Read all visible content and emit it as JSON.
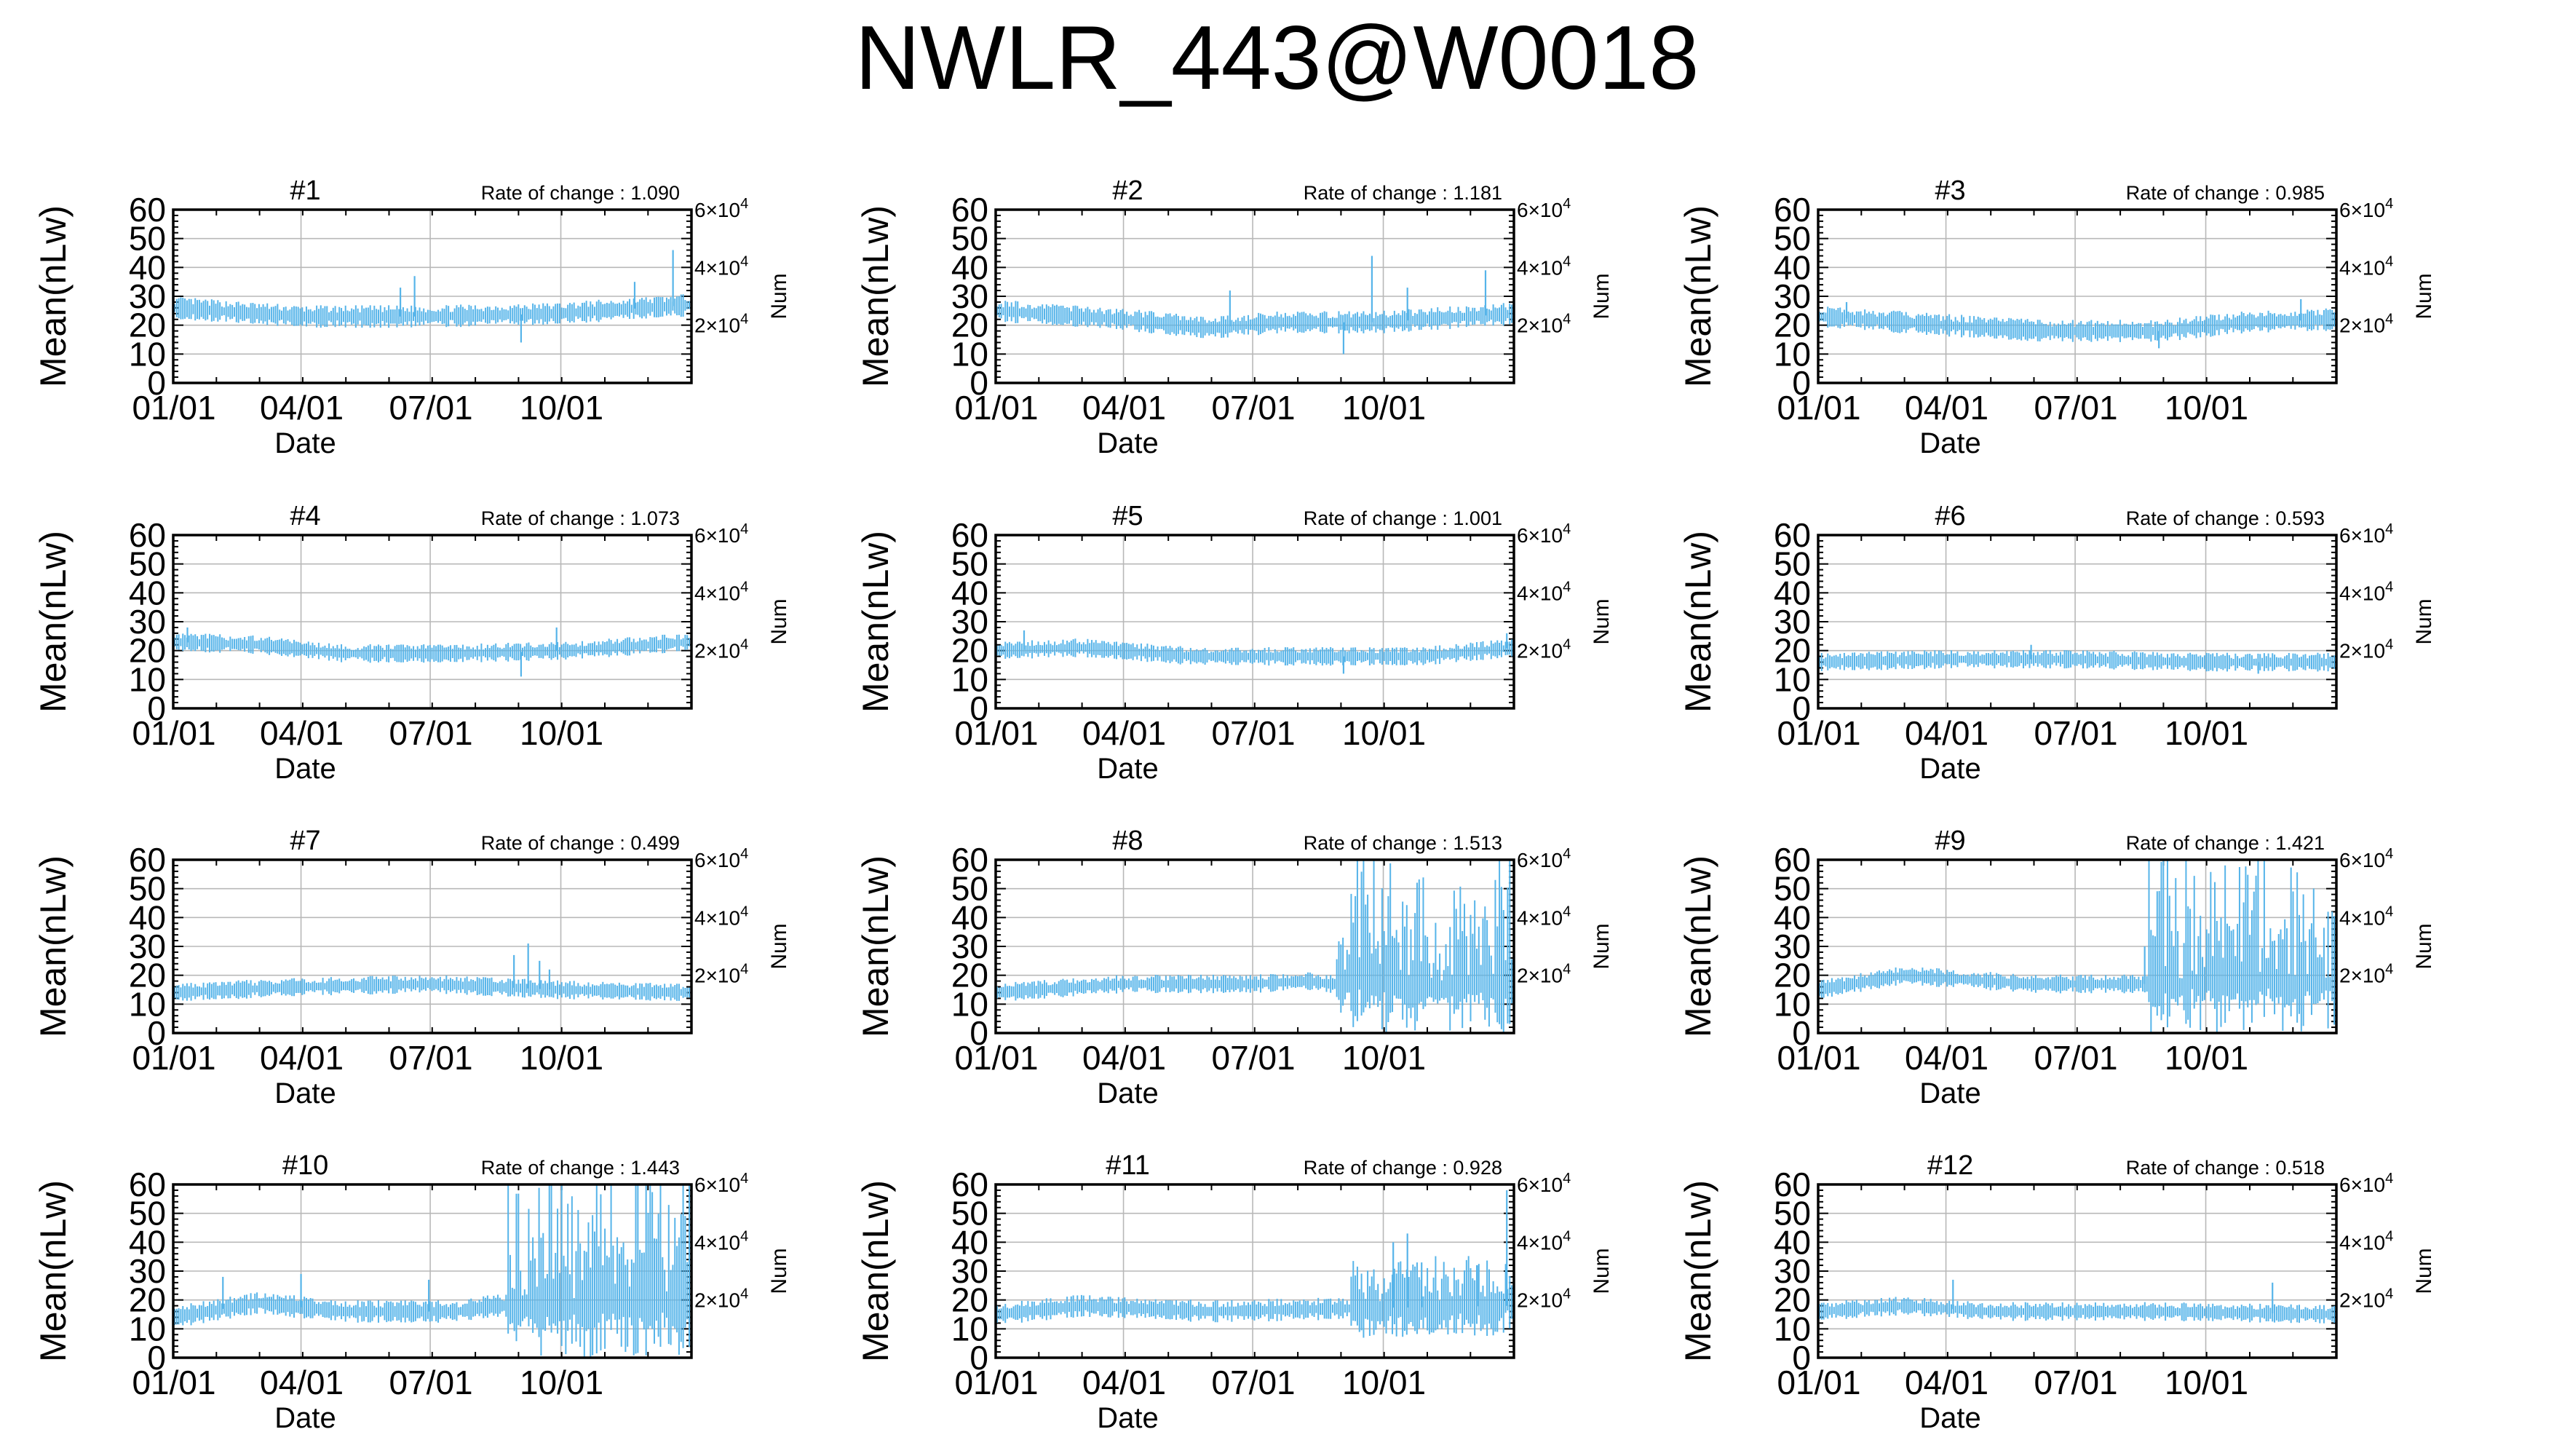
{
  "title": "NWLR_443@W0018",
  "colors": {
    "series": "#56b4e9",
    "grid": "#b8b8b8",
    "frame": "#000000"
  },
  "panel_defaults": {
    "xlabel": "Date",
    "ylabel": "Mean(nLw)",
    "y2label": "Num",
    "rate_prefix": "Rate of change : ",
    "yticks": [
      "0",
      "10",
      "20",
      "30",
      "40",
      "50",
      "60"
    ],
    "xticks": [
      "01/01",
      "04/01",
      "07/01",
      "10/01"
    ],
    "y2ticks": [
      {
        "mantissa": "2",
        "exp": "4",
        "value": 20000
      },
      {
        "mantissa": "4",
        "exp": "4",
        "value": 40000
      },
      {
        "mantissa": "6",
        "exp": "4",
        "value": 60000
      }
    ]
  },
  "chart_data": [
    {
      "type": "line",
      "title": "#1",
      "rate_of_change": "1.090",
      "xlabel": "Date",
      "ylabel": "Mean(nLw)",
      "y2label": "Num",
      "xlim": [
        "01/01",
        "12/31"
      ],
      "ylim": [
        0,
        60
      ],
      "y2lim": [
        0,
        60000
      ],
      "grid": true,
      "series": {
        "profile": [
          [
            0,
            26
          ],
          [
            90,
            23
          ],
          [
            180,
            23
          ],
          [
            270,
            24
          ],
          [
            365,
            27
          ]
        ],
        "spread": 3,
        "spikes": [
          [
            160,
            33
          ],
          [
            170,
            37
          ],
          [
            245,
            14
          ],
          [
            325,
            35
          ],
          [
            352,
            46
          ]
        ]
      }
    },
    {
      "type": "line",
      "title": "#2",
      "rate_of_change": "1.181",
      "xlabel": "Date",
      "ylabel": "Mean(nLw)",
      "y2label": "Num",
      "xlim": [
        "01/01",
        "12/31"
      ],
      "ylim": [
        0,
        60
      ],
      "y2lim": [
        0,
        60000
      ],
      "grid": true,
      "series": {
        "profile": [
          [
            0,
            25
          ],
          [
            90,
            22
          ],
          [
            150,
            19
          ],
          [
            200,
            21
          ],
          [
            270,
            21
          ],
          [
            365,
            24
          ]
        ],
        "spread": 3,
        "spikes": [
          [
            165,
            32
          ],
          [
            245,
            10
          ],
          [
            265,
            44
          ],
          [
            290,
            33
          ],
          [
            345,
            39
          ]
        ]
      }
    },
    {
      "type": "line",
      "title": "#3",
      "rate_of_change": "0.985",
      "xlabel": "Date",
      "ylabel": "Mean(nLw)",
      "y2label": "Num",
      "xlim": [
        "01/01",
        "12/31"
      ],
      "ylim": [
        0,
        60
      ],
      "y2lim": [
        0,
        60000
      ],
      "grid": true,
      "series": {
        "profile": [
          [
            0,
            23
          ],
          [
            90,
            20
          ],
          [
            160,
            18
          ],
          [
            240,
            18
          ],
          [
            300,
            21
          ],
          [
            365,
            22
          ]
        ],
        "spread": 3,
        "spikes": [
          [
            20,
            28
          ],
          [
            240,
            12
          ],
          [
            340,
            29
          ]
        ]
      }
    },
    {
      "type": "line",
      "title": "#4",
      "rate_of_change": "1.073",
      "xlabel": "Date",
      "ylabel": "Mean(nLw)",
      "y2label": "Num",
      "xlim": [
        "01/01",
        "12/31"
      ],
      "ylim": [
        0,
        60
      ],
      "y2lim": [
        0,
        60000
      ],
      "grid": true,
      "series": {
        "profile": [
          [
            0,
            23
          ],
          [
            60,
            22
          ],
          [
            120,
            19
          ],
          [
            200,
            19
          ],
          [
            280,
            20
          ],
          [
            365,
            23
          ]
        ],
        "spread": 2.5,
        "spikes": [
          [
            10,
            28
          ],
          [
            245,
            11
          ],
          [
            270,
            28
          ]
        ]
      }
    },
    {
      "type": "line",
      "title": "#5",
      "rate_of_change": "1.001",
      "xlabel": "Date",
      "ylabel": "Mean(nLw)",
      "y2label": "Num",
      "xlim": [
        "01/01",
        "12/31"
      ],
      "ylim": [
        0,
        60
      ],
      "y2lim": [
        0,
        60000
      ],
      "grid": true,
      "series": {
        "profile": [
          [
            0,
            20
          ],
          [
            60,
            21
          ],
          [
            140,
            18
          ],
          [
            240,
            18
          ],
          [
            300,
            18
          ],
          [
            365,
            21
          ]
        ],
        "spread": 2.5,
        "spikes": [
          [
            20,
            27
          ],
          [
            245,
            12
          ],
          [
            360,
            26
          ]
        ]
      }
    },
    {
      "type": "line",
      "title": "#6",
      "rate_of_change": "0.593",
      "xlabel": "Date",
      "ylabel": "Mean(nLw)",
      "y2label": "Num",
      "xlim": [
        "01/01",
        "12/31"
      ],
      "ylim": [
        0,
        60
      ],
      "y2lim": [
        0,
        60000
      ],
      "grid": true,
      "series": {
        "profile": [
          [
            0,
            16
          ],
          [
            90,
            17
          ],
          [
            180,
            17
          ],
          [
            270,
            16
          ],
          [
            365,
            16
          ]
        ],
        "spread": 2.5,
        "spikes": [
          [
            150,
            22
          ],
          [
            310,
            12
          ]
        ]
      }
    },
    {
      "type": "line",
      "title": "#7",
      "rate_of_change": "0.499",
      "xlabel": "Date",
      "ylabel": "Mean(nLw)",
      "y2label": "Num",
      "xlim": [
        "01/01",
        "12/31"
      ],
      "ylim": [
        0,
        60
      ],
      "y2lim": [
        0,
        60000
      ],
      "grid": true,
      "series": {
        "profile": [
          [
            0,
            14
          ],
          [
            90,
            16
          ],
          [
            180,
            17
          ],
          [
            270,
            15
          ],
          [
            365,
            14
          ]
        ],
        "spread": 2.5,
        "spikes": [
          [
            240,
            27
          ],
          [
            250,
            31
          ],
          [
            258,
            25
          ],
          [
            265,
            22
          ]
        ]
      }
    },
    {
      "type": "line",
      "title": "#8",
      "rate_of_change": "1.513",
      "xlabel": "Date",
      "ylabel": "Mean(nLw)",
      "y2label": "Num",
      "xlim": [
        "01/01",
        "12/31"
      ],
      "ylim": [
        0,
        60
      ],
      "y2lim": [
        0,
        60000
      ],
      "grid": true,
      "series": {
        "profile": [
          [
            0,
            14
          ],
          [
            90,
            17
          ],
          [
            180,
            17
          ],
          [
            220,
            18
          ],
          [
            235,
            17
          ],
          [
            365,
            17
          ]
        ],
        "spread": 2.5,
        "spikes": [],
        "wild_from": 240
      }
    },
    {
      "type": "line",
      "title": "#9",
      "rate_of_change": "1.421",
      "xlabel": "Date",
      "ylabel": "Mean(nLw)",
      "y2label": "Num",
      "xlim": [
        "01/01",
        "12/31"
      ],
      "ylim": [
        0,
        60
      ],
      "y2lim": [
        0,
        60000
      ],
      "grid": true,
      "series": {
        "profile": [
          [
            0,
            15
          ],
          [
            60,
            20
          ],
          [
            150,
            17
          ],
          [
            225,
            17
          ],
          [
            365,
            17
          ]
        ],
        "spread": 2.5,
        "spikes": [
          [
            230,
            30
          ]
        ],
        "wild_from": 232
      }
    },
    {
      "type": "line",
      "title": "#10",
      "rate_of_change": "1.443",
      "xlabel": "Date",
      "ylabel": "Mean(nLw)",
      "y2label": "Num",
      "xlim": [
        "01/01",
        "12/31"
      ],
      "ylim": [
        0,
        60
      ],
      "y2lim": [
        0,
        60000
      ],
      "grid": true,
      "series": {
        "profile": [
          [
            0,
            14
          ],
          [
            60,
            19
          ],
          [
            120,
            16
          ],
          [
            200,
            16
          ],
          [
            225,
            18
          ],
          [
            365,
            18
          ]
        ],
        "spread": 3,
        "spikes": [
          [
            35,
            28
          ],
          [
            90,
            29
          ],
          [
            180,
            27
          ]
        ],
        "wild_from": 235
      }
    },
    {
      "type": "line",
      "title": "#11",
      "rate_of_change": "0.928",
      "xlabel": "Date",
      "ylabel": "Mean(nLw)",
      "y2label": "Num",
      "xlim": [
        "01/01",
        "12/31"
      ],
      "ylim": [
        0,
        60
      ],
      "y2lim": [
        0,
        60000
      ],
      "grid": true,
      "series": {
        "profile": [
          [
            0,
            15
          ],
          [
            60,
            18
          ],
          [
            150,
            16
          ],
          [
            240,
            17
          ],
          [
            365,
            18
          ]
        ],
        "spread": 3,
        "spikes": [
          [
            280,
            40
          ],
          [
            290,
            43
          ],
          [
            300,
            33
          ],
          [
            340,
            32
          ],
          [
            360,
            58
          ]
        ],
        "noisy_from": 250
      }
    },
    {
      "type": "line",
      "title": "#12",
      "rate_of_change": "0.518",
      "xlabel": "Date",
      "ylabel": "Mean(nLw)",
      "y2label": "Num",
      "xlim": [
        "01/01",
        "12/31"
      ],
      "ylim": [
        0,
        60
      ],
      "y2lim": [
        0,
        60000
      ],
      "grid": true,
      "series": {
        "profile": [
          [
            0,
            16
          ],
          [
            60,
            18
          ],
          [
            120,
            16
          ],
          [
            240,
            16
          ],
          [
            365,
            15
          ]
        ],
        "spread": 2.5,
        "spikes": [
          [
            95,
            27
          ],
          [
            320,
            26
          ]
        ]
      }
    }
  ]
}
